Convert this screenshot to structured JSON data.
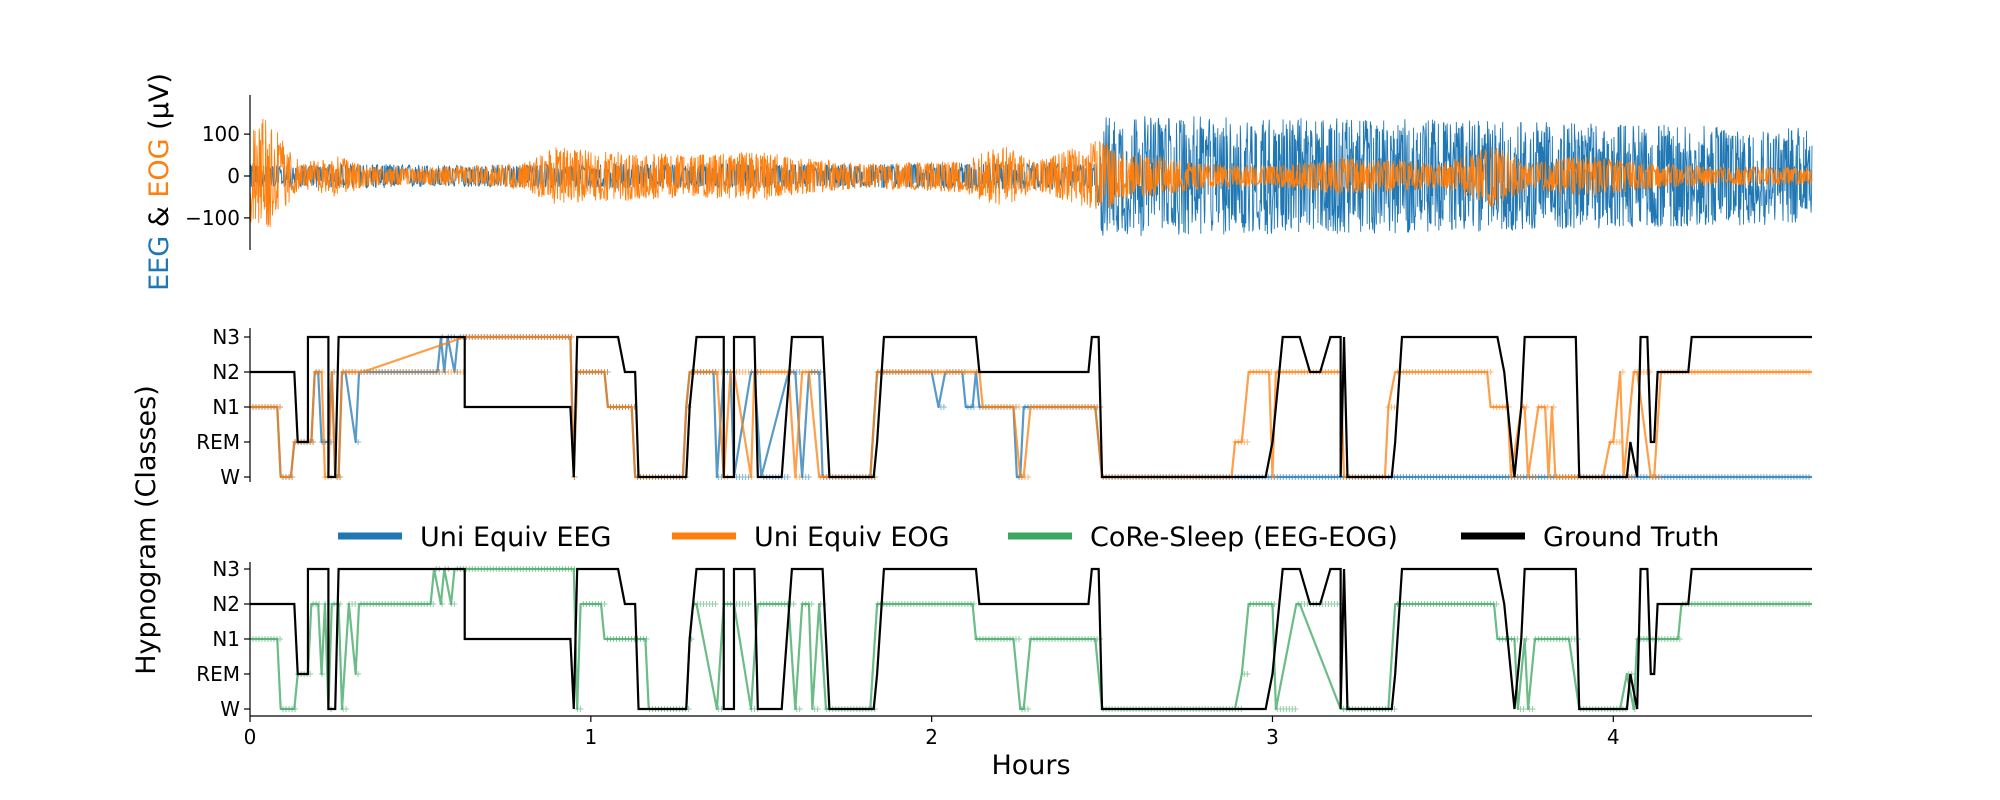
{
  "colors": {
    "eeg": "#1f77b4",
    "eog": "#ff7f0e",
    "core": "#3aa65f",
    "truth": "#000000"
  },
  "labels": {
    "signal_ylabel_eeg": "EEG",
    "signal_ylabel_amp": " & ",
    "signal_ylabel_eog": "EOG",
    "signal_ylabel_unit": " (µV)",
    "hypnogram_ylabel": "Hypnogram (Classes)",
    "xlabel": "Hours"
  },
  "legend": [
    {
      "name": "Uni Equiv EEG",
      "color": "#1f77b4"
    },
    {
      "name": "Uni Equiv EOG",
      "color": "#ff7f0e"
    },
    {
      "name": "CoRe-Sleep (EEG-EOG)",
      "color": "#3aa65f"
    },
    {
      "name": "Ground Truth",
      "color": "#000000"
    }
  ],
  "chart_data": [
    {
      "type": "line",
      "panel": "signal",
      "xlim": [
        0,
        4.583
      ],
      "ylim": [
        -185,
        185
      ],
      "yticks": [
        100,
        0,
        -100
      ],
      "ytick_labels": [
        "100",
        "0",
        "−100"
      ],
      "series": [
        {
          "name": "EEG",
          "color": "#1f77b4",
          "envelope_hours": [
            0,
            0.1,
            0.3,
            0.6,
            1.0,
            1.4,
            1.8,
            2.2,
            2.48,
            2.5,
            3.0,
            3.5,
            4.0,
            4.583
          ],
          "envelope_uv": [
            28,
            25,
            30,
            26,
            30,
            30,
            28,
            32,
            30,
            145,
            140,
            135,
            125,
            115
          ]
        },
        {
          "name": "EOG",
          "color": "#ff7f0e",
          "envelope_hours": [
            0,
            0.05,
            0.1,
            0.15,
            0.25,
            0.35,
            0.5,
            0.8,
            0.9,
            1.0,
            1.1,
            1.3,
            1.5,
            1.6,
            1.8,
            2.1,
            2.2,
            2.3,
            2.5,
            2.55,
            2.8,
            3.0,
            3.2,
            3.5,
            3.65,
            3.75,
            3.9,
            4.2,
            4.583
          ],
          "envelope_uv": [
            110,
            150,
            80,
            30,
            50,
            25,
            20,
            30,
            70,
            60,
            60,
            50,
            60,
            45,
            30,
            40,
            80,
            35,
            90,
            60,
            30,
            25,
            45,
            30,
            75,
            30,
            50,
            25,
            20
          ]
        }
      ]
    },
    {
      "type": "line",
      "panel": "hypnogram-unimodal",
      "xlim": [
        0,
        4.583
      ],
      "classes": [
        "W",
        "REM",
        "N1",
        "N2",
        "N3"
      ],
      "series": [
        {
          "name": "Ground Truth",
          "color": "#000000",
          "x": [
            0,
            0.13,
            0.14,
            0.15,
            0.17,
            0.17,
            0.23,
            0.23,
            0.25,
            0.26,
            0.33,
            0.33,
            0.63,
            0.63,
            0.94,
            0.95,
            0.96,
            1.08,
            1.1,
            1.13,
            1.14,
            1.16,
            1.16,
            1.28,
            1.29,
            1.31,
            1.39,
            1.39,
            1.42,
            1.42,
            1.48,
            1.49,
            1.56,
            1.59,
            1.68,
            1.7,
            1.71,
            1.83,
            1.84,
            1.86,
            2.13,
            2.14,
            2.25,
            2.27,
            2.42,
            2.46,
            2.47,
            2.49,
            2.5,
            2.9,
            2.98,
            3.0,
            3.01,
            3.03,
            3.08,
            3.11,
            3.13,
            3.14,
            3.17,
            3.2,
            3.2,
            3.21,
            3.22,
            3.23,
            3.24,
            3.35,
            3.36,
            3.38,
            3.41,
            3.66,
            3.68,
            3.71,
            3.71,
            3.73,
            3.74,
            3.76,
            3.89,
            3.9,
            3.91,
            4.04,
            4.05,
            4.07,
            4.08,
            4.09,
            4.1,
            4.11,
            4.12,
            4.13,
            4.22,
            4.23,
            4.583
          ],
          "y": [
            3,
            3,
            1,
            1,
            1,
            4,
            4,
            0,
            0,
            4,
            4,
            4,
            4,
            2,
            2,
            0,
            4,
            4,
            3,
            3,
            0,
            0,
            0,
            0,
            2,
            4,
            4,
            0,
            0,
            4,
            4,
            0,
            0,
            4,
            4,
            0,
            0,
            0,
            1,
            4,
            4,
            3,
            3,
            3,
            3,
            3,
            4,
            4,
            0,
            0,
            0,
            1,
            2,
            4,
            4,
            3,
            3,
            3,
            4,
            4,
            0,
            4,
            0,
            0,
            0,
            0,
            1,
            4,
            4,
            4,
            3,
            0,
            0,
            2,
            4,
            4,
            4,
            0,
            0,
            0,
            1,
            0,
            4,
            4,
            4,
            1,
            1,
            3,
            3,
            4,
            4
          ]
        },
        {
          "name": "Uni Equiv EEG",
          "color": "#1f77b4",
          "x": [
            0,
            0.08,
            0.09,
            0.12,
            0.13,
            0.18,
            0.19,
            0.2,
            0.21,
            0.23,
            0.24,
            0.25,
            0.26,
            0.27,
            0.28,
            0.31,
            0.32,
            0.33,
            0.55,
            0.56,
            0.57,
            0.58,
            0.6,
            0.61,
            0.94,
            0.95,
            0.96,
            0.97,
            0.99,
            1.04,
            1.05,
            1.06,
            1.12,
            1.13,
            1.27,
            1.28,
            1.29,
            1.31,
            1.36,
            1.37,
            1.39,
            1.41,
            1.42,
            1.47,
            1.48,
            1.5,
            1.58,
            1.6,
            1.62,
            1.64,
            1.67,
            1.68,
            1.71,
            1.82,
            1.84,
            2.0,
            2.02,
            2.04,
            2.09,
            2.1,
            2.12,
            2.13,
            2.14,
            2.24,
            2.25,
            2.26,
            2.27,
            2.29,
            2.48,
            2.5,
            3.0,
            4.583
          ],
          "y": [
            2,
            2,
            0,
            0,
            1,
            1,
            3,
            3,
            1,
            1,
            3,
            0,
            0,
            3,
            3,
            1,
            3,
            3,
            3,
            4,
            3,
            4,
            3,
            4,
            4,
            0,
            3,
            3,
            3,
            3,
            2,
            2,
            2,
            0,
            0,
            2,
            3,
            3,
            3,
            0,
            3,
            3,
            0,
            3,
            3,
            0,
            3,
            3,
            0,
            3,
            3,
            0,
            0,
            0,
            3,
            3,
            2,
            3,
            3,
            2,
            2,
            3,
            2,
            2,
            0,
            0,
            2,
            2,
            2,
            0,
            0,
            0
          ]
        },
        {
          "name": "Uni Equiv EOG",
          "color": "#ff7f0e",
          "x": [
            0,
            0.08,
            0.09,
            0.12,
            0.13,
            0.18,
            0.19,
            0.21,
            0.22,
            0.23,
            0.24,
            0.25,
            0.26,
            0.27,
            0.28,
            0.33,
            0.63,
            0.94,
            0.95,
            0.96,
            0.97,
            1.04,
            1.05,
            1.12,
            1.13,
            1.27,
            1.28,
            1.29,
            1.31,
            1.37,
            1.39,
            1.41,
            1.42,
            1.47,
            1.48,
            1.58,
            1.6,
            1.62,
            1.64,
            1.67,
            1.68,
            1.71,
            1.82,
            1.84,
            2.14,
            2.15,
            2.24,
            2.26,
            2.27,
            2.29,
            2.48,
            2.5,
            2.88,
            2.89,
            2.91,
            2.93,
            2.99,
            3.0,
            3.01,
            3.2,
            3.21,
            3.33,
            3.34,
            3.36,
            3.38,
            3.63,
            3.64,
            3.69,
            3.7,
            3.73,
            3.74,
            3.75,
            3.78,
            3.8,
            3.81,
            3.82,
            3.83,
            3.9,
            3.97,
            3.99,
            4.0,
            4.02,
            4.03,
            4.06,
            4.07,
            4.11,
            4.12,
            4.14,
            4.583
          ],
          "y": [
            2,
            2,
            0,
            0,
            1,
            1,
            3,
            3,
            0,
            0,
            3,
            0,
            0,
            3,
            3,
            3,
            4,
            4,
            0,
            3,
            3,
            3,
            2,
            2,
            0,
            0,
            2,
            3,
            3,
            3,
            0,
            3,
            3,
            0,
            3,
            3,
            0,
            3,
            3,
            0,
            0,
            0,
            0,
            3,
            3,
            2,
            2,
            0,
            0,
            2,
            2,
            0,
            0,
            1,
            1,
            3,
            3,
            0,
            3,
            3,
            0,
            0,
            2,
            3,
            3,
            3,
            2,
            2,
            0,
            2,
            2,
            0,
            2,
            2,
            0,
            2,
            0,
            0,
            0,
            1,
            1,
            3,
            0,
            3,
            3,
            0,
            0,
            3,
            3
          ]
        }
      ]
    },
    {
      "type": "line",
      "panel": "hypnogram-multimodal",
      "xlim": [
        0,
        4.583
      ],
      "xticks": [
        0,
        1,
        2,
        3,
        4
      ],
      "classes": [
        "W",
        "REM",
        "N1",
        "N2",
        "N3"
      ],
      "series": [
        {
          "name": "Ground Truth",
          "color": "#000000",
          "x": [
            0,
            0.13,
            0.14,
            0.15,
            0.17,
            0.17,
            0.23,
            0.23,
            0.25,
            0.26,
            0.33,
            0.33,
            0.63,
            0.63,
            0.94,
            0.95,
            0.96,
            1.08,
            1.1,
            1.13,
            1.14,
            1.16,
            1.16,
            1.28,
            1.29,
            1.31,
            1.39,
            1.39,
            1.42,
            1.42,
            1.48,
            1.49,
            1.56,
            1.59,
            1.68,
            1.7,
            1.71,
            1.83,
            1.84,
            1.86,
            2.13,
            2.14,
            2.25,
            2.27,
            2.42,
            2.46,
            2.47,
            2.49,
            2.5,
            2.9,
            2.98,
            3.0,
            3.01,
            3.03,
            3.08,
            3.11,
            3.13,
            3.14,
            3.17,
            3.2,
            3.2,
            3.21,
            3.22,
            3.23,
            3.24,
            3.35,
            3.36,
            3.38,
            3.41,
            3.66,
            3.68,
            3.71,
            3.71,
            3.73,
            3.74,
            3.76,
            3.89,
            3.9,
            3.91,
            4.04,
            4.05,
            4.07,
            4.08,
            4.09,
            4.1,
            4.11,
            4.12,
            4.13,
            4.22,
            4.23,
            4.583
          ],
          "y": [
            3,
            3,
            1,
            1,
            1,
            4,
            4,
            0,
            0,
            4,
            4,
            4,
            4,
            2,
            2,
            0,
            4,
            4,
            3,
            3,
            0,
            0,
            0,
            0,
            2,
            4,
            4,
            0,
            0,
            4,
            4,
            0,
            0,
            4,
            4,
            0,
            0,
            0,
            1,
            4,
            4,
            3,
            3,
            3,
            3,
            3,
            4,
            4,
            0,
            0,
            0,
            1,
            2,
            4,
            4,
            3,
            3,
            3,
            4,
            4,
            0,
            4,
            0,
            0,
            0,
            0,
            1,
            4,
            4,
            4,
            3,
            0,
            0,
            2,
            4,
            4,
            4,
            0,
            0,
            0,
            1,
            0,
            4,
            4,
            4,
            1,
            1,
            3,
            3,
            4,
            4
          ]
        },
        {
          "name": "CoRe-Sleep (EEG-EOG)",
          "color": "#3aa65f",
          "x": [
            0,
            0.08,
            0.09,
            0.13,
            0.14,
            0.17,
            0.18,
            0.2,
            0.21,
            0.22,
            0.23,
            0.24,
            0.26,
            0.27,
            0.29,
            0.31,
            0.32,
            0.33,
            0.53,
            0.54,
            0.56,
            0.57,
            0.59,
            0.6,
            0.61,
            0.95,
            0.96,
            0.97,
            1.03,
            1.04,
            1.16,
            1.17,
            1.28,
            1.29,
            1.3,
            1.31,
            1.37,
            1.39,
            1.42,
            1.47,
            1.49,
            1.58,
            1.6,
            1.62,
            1.64,
            1.65,
            1.67,
            1.69,
            1.71,
            1.82,
            1.84,
            2.12,
            2.13,
            2.24,
            2.26,
            2.27,
            2.29,
            2.48,
            2.5,
            2.89,
            2.91,
            2.93,
            3.0,
            3.01,
            3.07,
            3.08,
            3.2,
            3.21,
            3.22,
            3.3,
            3.34,
            3.36,
            3.38,
            3.65,
            3.66,
            3.71,
            3.72,
            3.74,
            3.75,
            3.77,
            3.87,
            3.9,
            4.0,
            4.02,
            4.04,
            4.06,
            4.07,
            4.1,
            4.11,
            4.19,
            4.2,
            4.22,
            4.583
          ],
          "y": [
            2,
            2,
            0,
            0,
            1,
            1,
            3,
            3,
            1,
            3,
            0,
            3,
            3,
            0,
            3,
            1,
            3,
            3,
            3,
            4,
            3,
            4,
            3,
            4,
            4,
            4,
            0,
            3,
            3,
            2,
            2,
            0,
            0,
            2,
            3,
            3,
            0,
            3,
            3,
            0,
            3,
            3,
            0,
            3,
            3,
            0,
            3,
            0,
            0,
            0,
            3,
            3,
            2,
            2,
            0,
            0,
            2,
            2,
            0,
            0,
            1,
            3,
            3,
            0,
            3,
            3,
            0,
            0,
            0,
            0,
            0,
            3,
            3,
            3,
            2,
            2,
            0,
            2,
            0,
            2,
            2,
            0,
            0,
            0,
            1,
            0,
            2,
            2,
            2,
            2,
            3,
            3,
            3
          ]
        }
      ]
    }
  ]
}
